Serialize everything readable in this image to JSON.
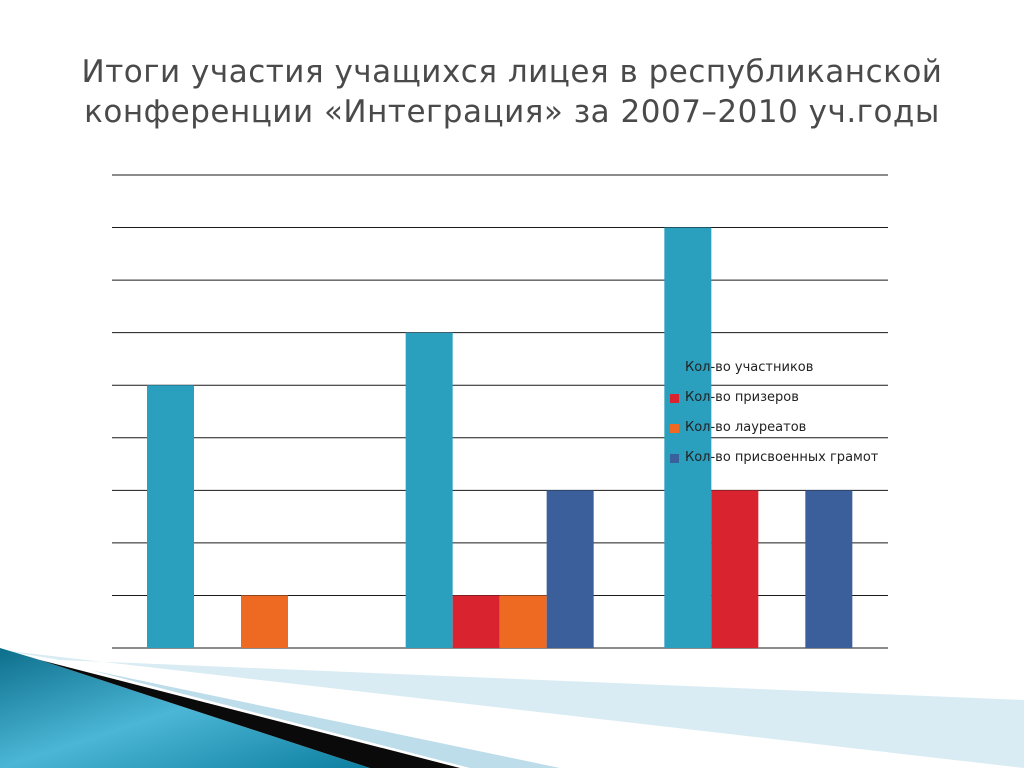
{
  "slide": {
    "title_line1": "Итоги участия учащихся лицея в республиканской",
    "title_line2": "конференции «Интеграция» за 2007–2010 уч.годы"
  },
  "colors": {
    "participants": "#2AA0BE",
    "prizewinners": "#D9232E",
    "laureates": "#EE6A22",
    "certificates": "#3A5F9A",
    "gridline": "#1a1a1a",
    "title": "#4a4a4a"
  },
  "chart_data": {
    "type": "bar",
    "title": "",
    "xlabel": "",
    "ylabel": "",
    "categories": [
      "",
      "",
      ""
    ],
    "ylim": [
      0,
      9
    ],
    "grid": true,
    "legend_position": "right",
    "series": [
      {
        "name": "Кол-во участников",
        "values": [
          5,
          6,
          8
        ]
      },
      {
        "name": "Кол-во призеров",
        "values": [
          0,
          1,
          3
        ]
      },
      {
        "name": "Кол-во лауреатов",
        "values": [
          1,
          1,
          0
        ]
      },
      {
        "name": "Кол-во присвоенных грамот",
        "values": [
          0,
          3,
          3
        ]
      }
    ]
  }
}
